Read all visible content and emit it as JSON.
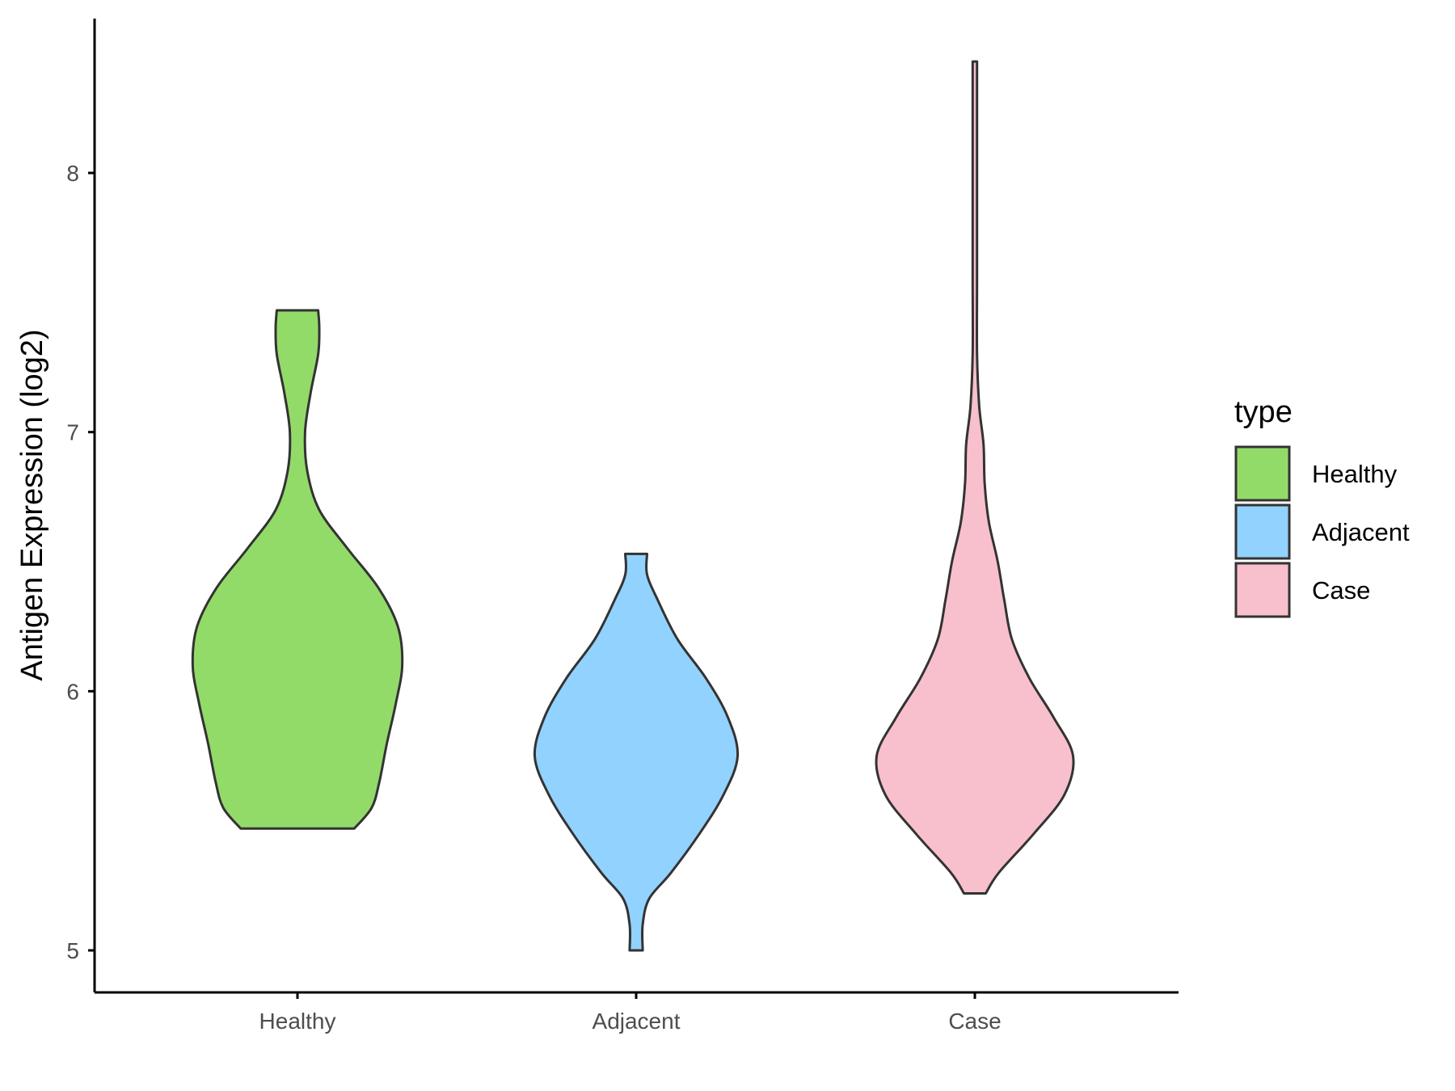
{
  "chart_data": {
    "type": "violin",
    "title": "",
    "xlabel": "",
    "ylabel": "Antigen Expression (log2)",
    "ylim": [
      4.84,
      8.6
    ],
    "yticks": [
      5,
      6,
      7,
      8
    ],
    "grid": false,
    "categories": [
      "Healthy",
      "Adjacent",
      "Case"
    ],
    "series": [
      {
        "name": "Healthy",
        "color": "#93DB69",
        "min": 5.47,
        "max": 7.47,
        "profile": [
          [
            5.47,
            0.52
          ],
          [
            5.55,
            0.68
          ],
          [
            5.65,
            0.75
          ],
          [
            5.8,
            0.82
          ],
          [
            5.95,
            0.9
          ],
          [
            6.1,
            0.96
          ],
          [
            6.25,
            0.92
          ],
          [
            6.4,
            0.74
          ],
          [
            6.55,
            0.46
          ],
          [
            6.7,
            0.2
          ],
          [
            6.85,
            0.09
          ],
          [
            7.0,
            0.07
          ],
          [
            7.15,
            0.12
          ],
          [
            7.3,
            0.19
          ],
          [
            7.4,
            0.2
          ],
          [
            7.47,
            0.19
          ]
        ]
      },
      {
        "name": "Adjacent",
        "color": "#92D2FF",
        "min": 5.0,
        "max": 6.53,
        "profile": [
          [
            5.0,
            0.06
          ],
          [
            5.1,
            0.06
          ],
          [
            5.2,
            0.12
          ],
          [
            5.3,
            0.32
          ],
          [
            5.45,
            0.58
          ],
          [
            5.6,
            0.8
          ],
          [
            5.75,
            0.93
          ],
          [
            5.9,
            0.84
          ],
          [
            6.05,
            0.64
          ],
          [
            6.2,
            0.38
          ],
          [
            6.35,
            0.2
          ],
          [
            6.45,
            0.1
          ],
          [
            6.53,
            0.1
          ]
        ]
      },
      {
        "name": "Case",
        "color": "#F8C0CC",
        "min": 5.22,
        "max": 8.43,
        "profile": [
          [
            5.22,
            0.1
          ],
          [
            5.3,
            0.22
          ],
          [
            5.45,
            0.54
          ],
          [
            5.6,
            0.82
          ],
          [
            5.75,
            0.9
          ],
          [
            5.9,
            0.72
          ],
          [
            6.05,
            0.5
          ],
          [
            6.2,
            0.34
          ],
          [
            6.35,
            0.27
          ],
          [
            6.5,
            0.21
          ],
          [
            6.65,
            0.13
          ],
          [
            6.8,
            0.09
          ],
          [
            6.95,
            0.08
          ],
          [
            7.1,
            0.04
          ],
          [
            7.3,
            0.02
          ],
          [
            7.6,
            0.02
          ],
          [
            8.0,
            0.02
          ],
          [
            8.43,
            0.02
          ]
        ]
      }
    ],
    "legend": {
      "title": "type",
      "position": "right",
      "items": [
        "Healthy",
        "Adjacent",
        "Case"
      ]
    }
  }
}
